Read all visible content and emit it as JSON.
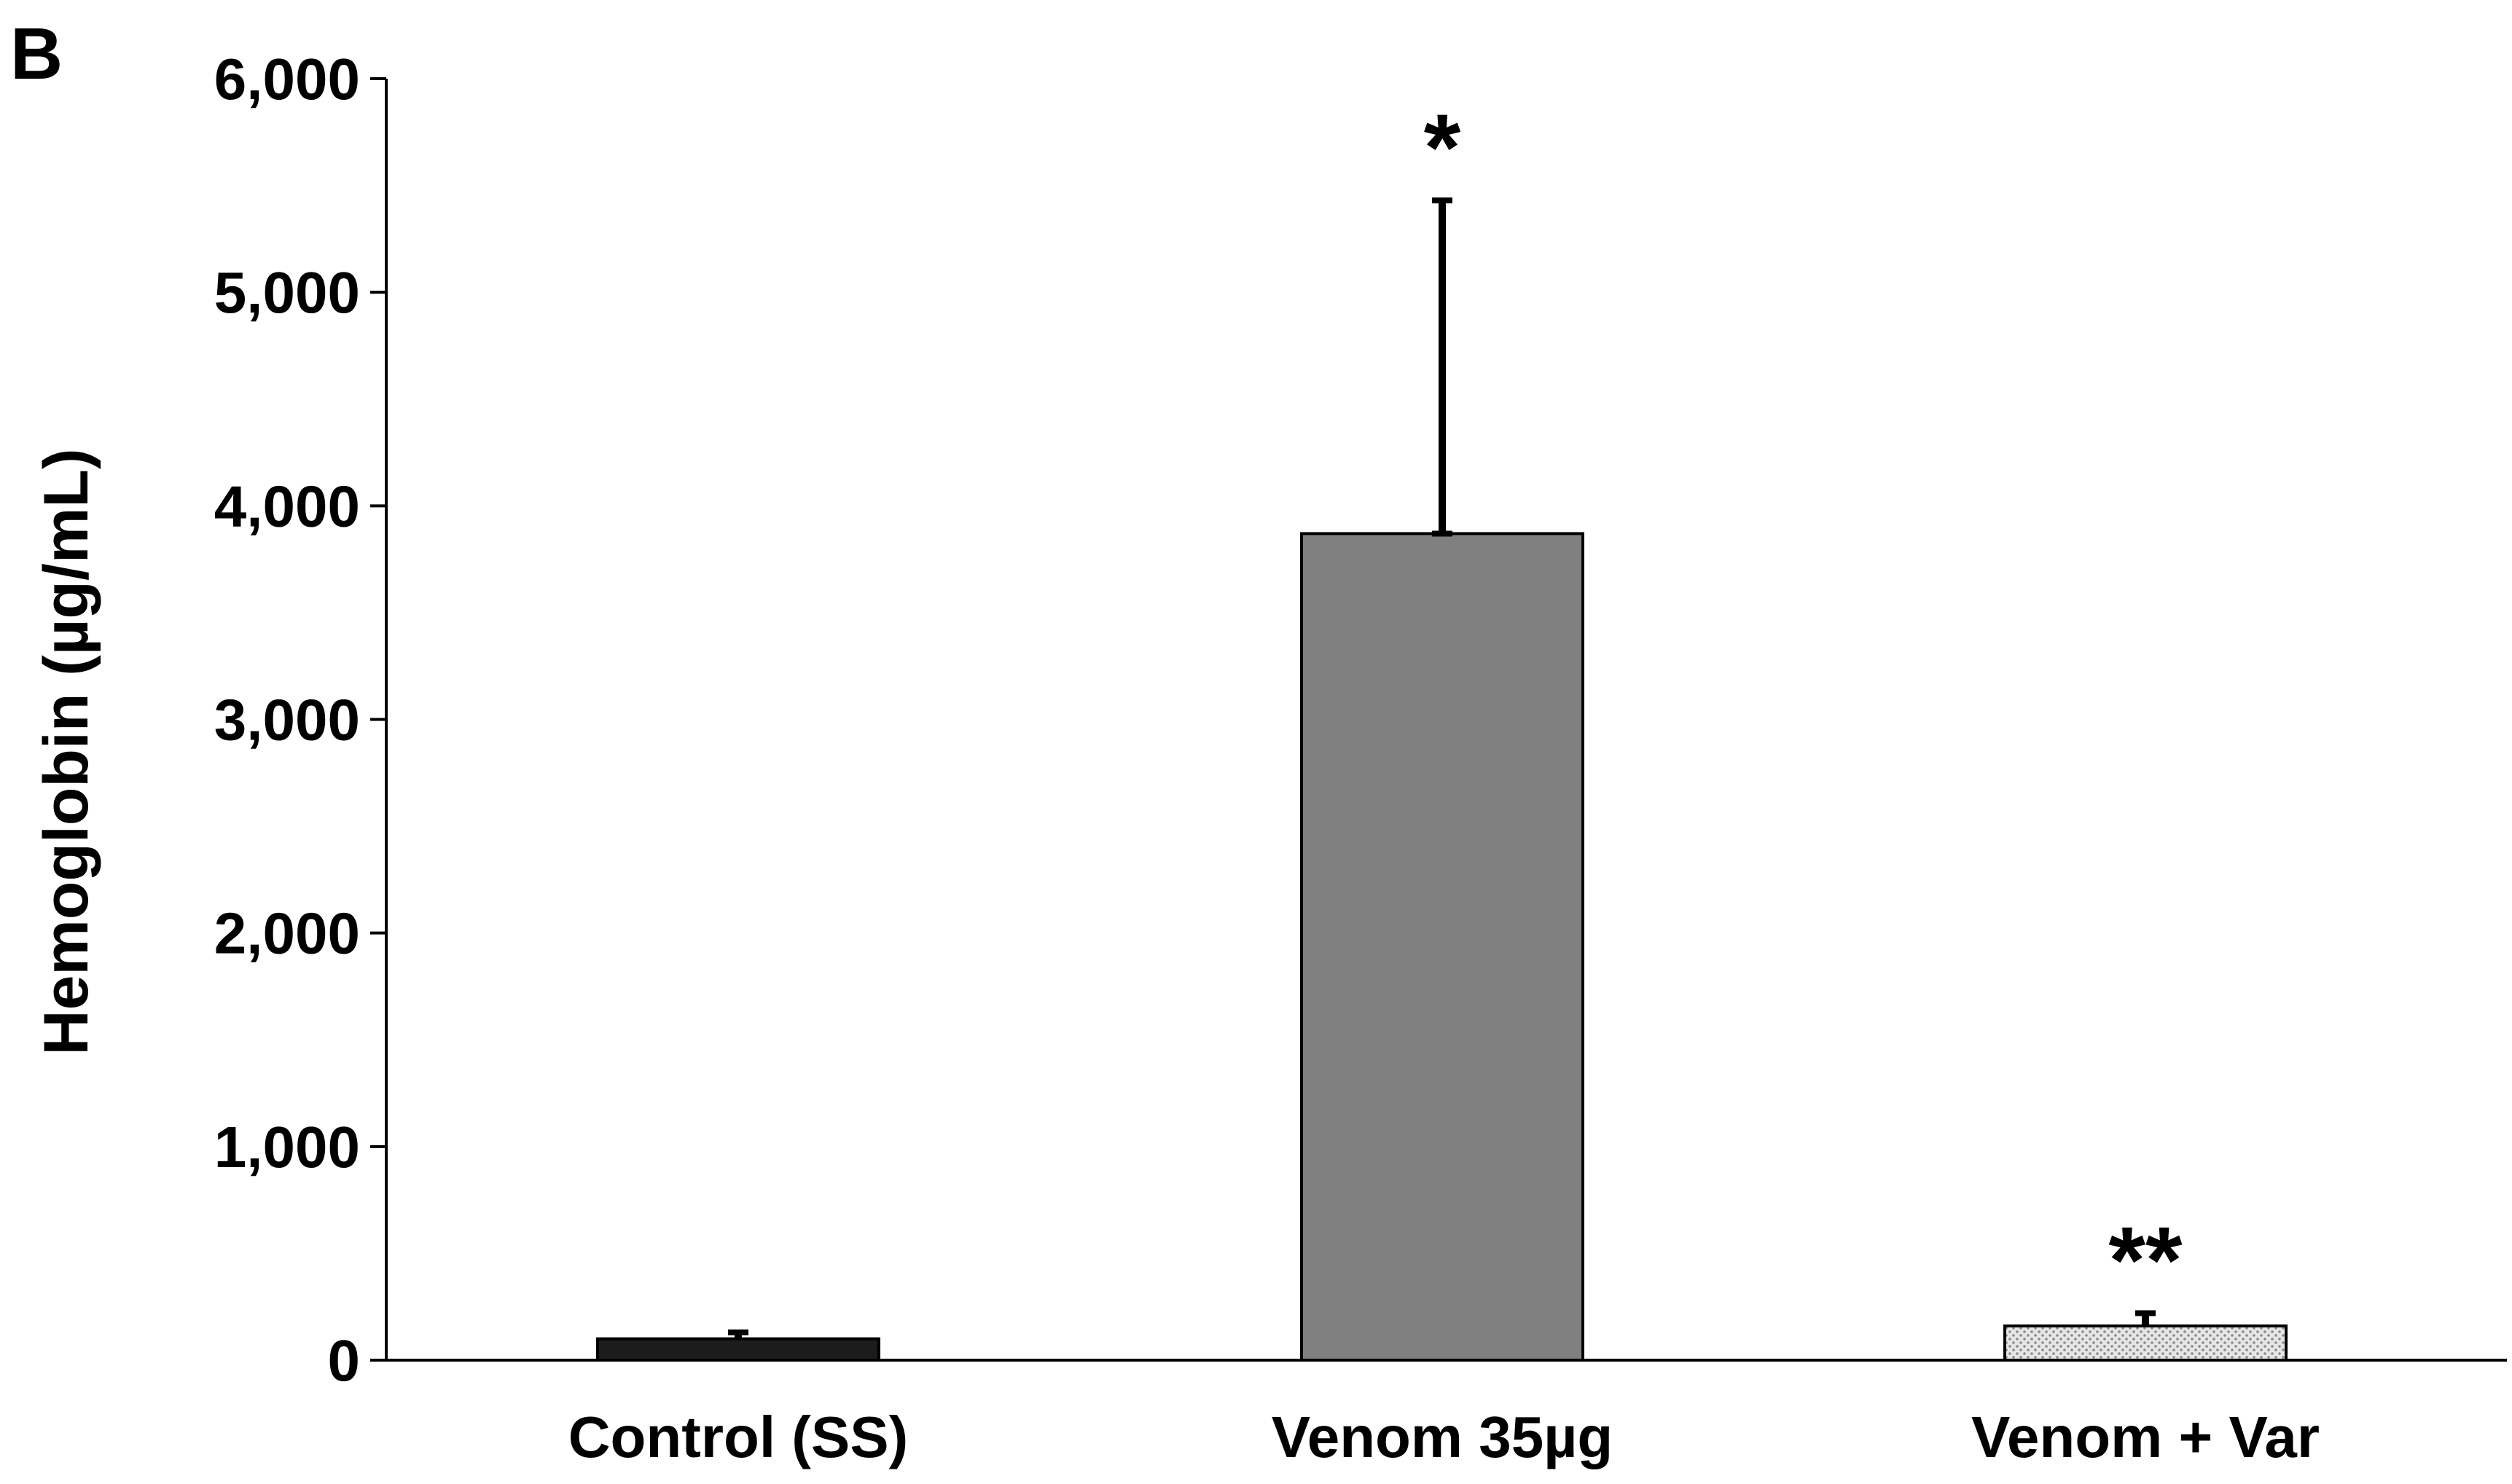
{
  "panel_label": "B",
  "chart_data": {
    "type": "bar",
    "title": "",
    "xlabel": "",
    "ylabel": "Hemoglobin (µg/mL)",
    "ylim": [
      0,
      6000
    ],
    "yticks": [
      0,
      1000,
      2000,
      3000,
      4000,
      5000,
      6000
    ],
    "ytick_labels": [
      "0",
      "1,000",
      "2,000",
      "3,000",
      "4,000",
      "5,000",
      "6,000"
    ],
    "categories": [
      "Control (SS)",
      "Venom 35µg",
      "Venom + Var"
    ],
    "values": [
      100,
      3870,
      160
    ],
    "error_upper": [
      30,
      1560,
      60
    ],
    "bar_colors": [
      "#1c1c1c",
      "#808080",
      "#d8d8d8"
    ],
    "bar_patterns": [
      "solid",
      "solid",
      "dotted"
    ],
    "annotations": [
      "",
      "*",
      "**"
    ],
    "grid": false,
    "legend": "none"
  }
}
